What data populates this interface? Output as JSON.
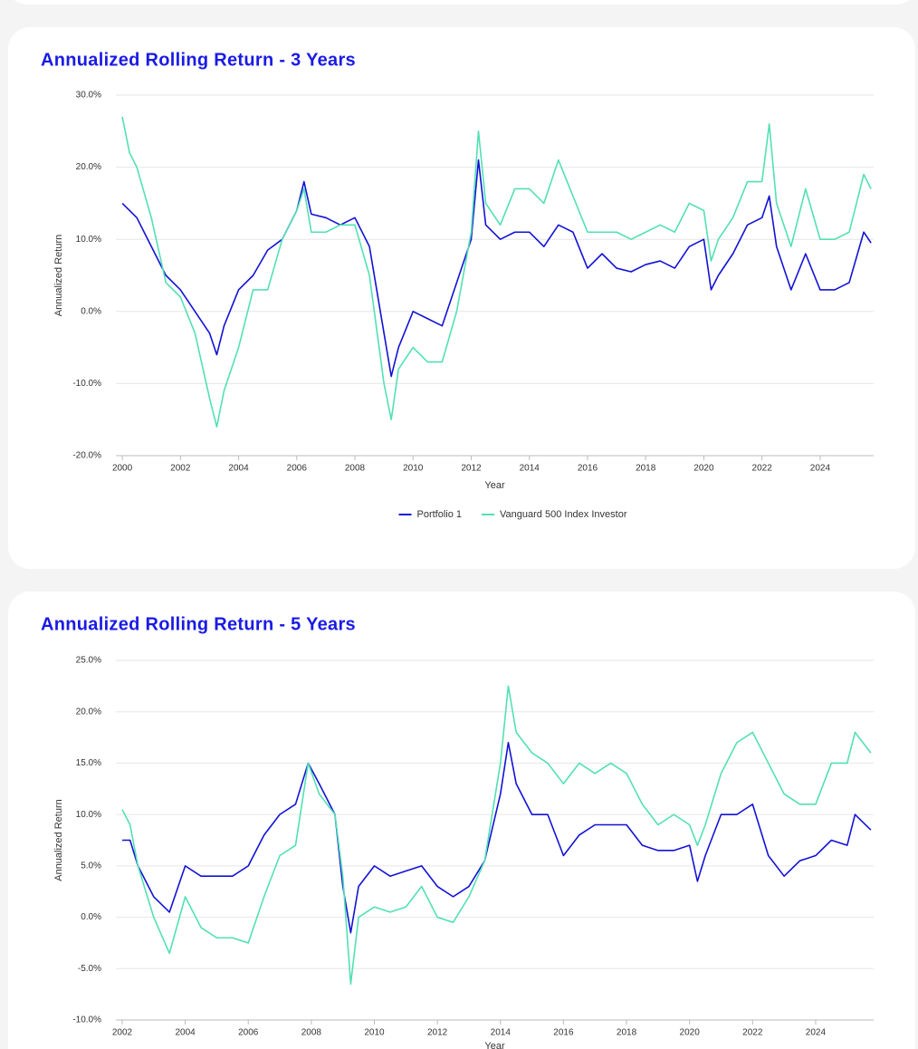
{
  "chart_data": [
    {
      "type": "line",
      "title": "Annualized Rolling Return - 3 Years",
      "xlabel": "Year",
      "ylabel": "Annualized Return",
      "x": [
        2000,
        2000.25,
        2000.5,
        2001,
        2001.5,
        2002,
        2002.5,
        2003,
        2003.25,
        2003.5,
        2004,
        2004.5,
        2005,
        2005.5,
        2006,
        2006.25,
        2006.5,
        2007,
        2007.5,
        2008,
        2008.5,
        2009,
        2009.25,
        2009.5,
        2010,
        2010.5,
        2011,
        2011.5,
        2012,
        2012.25,
        2012.5,
        2013,
        2013.5,
        2014,
        2014.5,
        2015,
        2015.5,
        2016,
        2016.5,
        2017,
        2017.5,
        2018,
        2018.5,
        2019,
        2019.5,
        2020,
        2020.25,
        2020.5,
        2021,
        2021.5,
        2022,
        2022.25,
        2022.5,
        2023,
        2023.5,
        2024,
        2024.5,
        2025,
        2025.5,
        2025.75
      ],
      "series": [
        {
          "name": "Portfolio 1",
          "color": "#1212d6",
          "values": [
            15,
            14,
            13,
            9,
            5,
            3,
            0,
            -3,
            -6,
            -2,
            3,
            5,
            8.5,
            10,
            14,
            18,
            13.5,
            13,
            12,
            13,
            9,
            -3,
            -9,
            -5,
            0,
            -1,
            -2,
            4,
            10,
            21,
            12,
            10,
            11,
            11,
            9,
            12,
            11,
            6,
            8,
            6,
            5.5,
            6.5,
            7,
            6,
            9,
            10,
            3,
            5,
            8,
            12,
            13,
            16,
            9,
            3,
            8,
            3,
            3,
            4,
            11,
            9.5
          ]
        },
        {
          "name": "Vanguard 500 Index Investor",
          "color": "#52e0b4",
          "values": [
            27,
            22,
            20,
            13,
            4,
            2,
            -3,
            -12,
            -16,
            -11,
            -5,
            3,
            3,
            10,
            14,
            17,
            11,
            11,
            12,
            12,
            5,
            -10,
            -15,
            -8,
            -5,
            -7,
            -7,
            0,
            11,
            25,
            15,
            12,
            17,
            17,
            15,
            21,
            16,
            11,
            11,
            11,
            10,
            11,
            12,
            11,
            15,
            14,
            7,
            10,
            13,
            18,
            18,
            26,
            15,
            9,
            17,
            10,
            10,
            11,
            19,
            17
          ]
        }
      ],
      "xlim": [
        1999.78,
        2025.84
      ],
      "xticks": [
        2000,
        2002,
        2004,
        2006,
        2008,
        2010,
        2012,
        2014,
        2016,
        2018,
        2020,
        2022,
        2024
      ],
      "ylim": [
        -20,
        30
      ],
      "yticks": [
        {
          "value": 30,
          "label": "30.0%"
        },
        {
          "value": 20,
          "label": "20.0%"
        },
        {
          "value": 10,
          "label": "10.0%"
        },
        {
          "value": 0,
          "label": "0.0%"
        },
        {
          "value": -10,
          "label": "-10.0%"
        },
        {
          "value": -20,
          "label": "-20.0%"
        }
      ],
      "grid": true,
      "legend": "bottom"
    },
    {
      "type": "line",
      "title": "Annualized Rolling Return - 5 Years",
      "xlabel": "Year",
      "ylabel": "Annualized Return",
      "x": [
        2002,
        2002.25,
        2002.5,
        2003,
        2003.5,
        2004,
        2004.5,
        2005,
        2005.5,
        2006,
        2006.5,
        2007,
        2007.5,
        2007.9,
        2008.25,
        2008.75,
        2009,
        2009.25,
        2009.5,
        2010,
        2010.5,
        2011,
        2011.5,
        2012,
        2012.5,
        2013,
        2013.5,
        2014,
        2014.25,
        2014.5,
        2015,
        2015.5,
        2016,
        2016.5,
        2017,
        2017.5,
        2018,
        2018.5,
        2019,
        2019.5,
        2020,
        2020.25,
        2020.5,
        2021,
        2021.5,
        2022,
        2022.5,
        2023,
        2023.5,
        2024,
        2024.5,
        2025,
        2025.25,
        2025.75
      ],
      "series": [
        {
          "color": "#1212d6",
          "values": [
            7.5,
            7.5,
            5,
            2,
            0.5,
            5,
            4,
            4,
            4,
            5,
            8,
            10,
            11,
            15,
            13,
            10,
            3,
            -1.5,
            3,
            5,
            4,
            4.5,
            5,
            3,
            2,
            3,
            5.5,
            12,
            17,
            13,
            10,
            10,
            6,
            8,
            9,
            9,
            9,
            7,
            6.5,
            6.5,
            7,
            3.5,
            6,
            10,
            10,
            11,
            6,
            4,
            5.5,
            6,
            7.5,
            7,
            10,
            8.5
          ]
        },
        {
          "color": "#52e0b4",
          "values": [
            10.5,
            9,
            5,
            0,
            -3.5,
            2,
            -1,
            -2,
            -2,
            -2.5,
            2,
            6,
            7,
            15,
            12,
            10,
            4,
            -6.5,
            0,
            1,
            0.5,
            1,
            3,
            0,
            -0.5,
            2,
            5.5,
            15,
            22.5,
            18,
            16,
            15,
            13,
            15,
            14,
            15,
            14,
            11,
            9,
            10,
            9,
            7,
            9,
            14,
            17,
            18,
            15,
            12,
            11,
            11,
            15,
            15,
            18,
            16
          ]
        }
      ],
      "xlim": [
        2001.8,
        2025.84
      ],
      "xticks": [
        2002,
        2004,
        2006,
        2008,
        2010,
        2012,
        2014,
        2016,
        2018,
        2020,
        2022,
        2024
      ],
      "ylim": [
        -10,
        25
      ],
      "yticks": [
        {
          "value": 25,
          "label": "25.0%"
        },
        {
          "value": 20,
          "label": "20.0%"
        },
        {
          "value": 15,
          "label": "15.0%"
        },
        {
          "value": 10,
          "label": "10.0%"
        },
        {
          "value": 5,
          "label": "5.0%"
        },
        {
          "value": 0,
          "label": "0.0%"
        },
        {
          "value": -5,
          "label": "-5.0%"
        },
        {
          "value": -10,
          "label": "-10.0%"
        }
      ],
      "grid": true
    }
  ]
}
